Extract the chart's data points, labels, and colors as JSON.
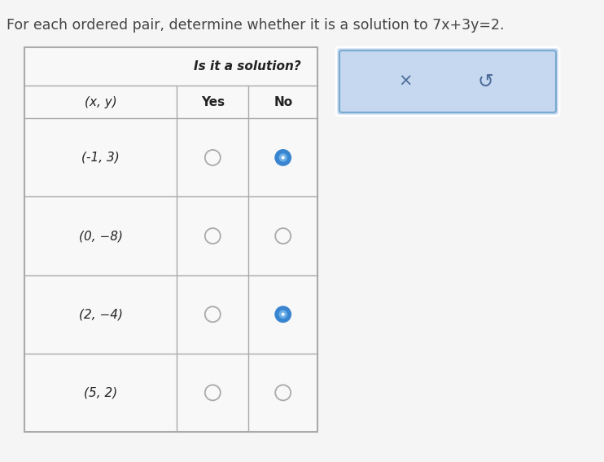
{
  "title": "For each ordered pair, determine whether it is a solution to 7x+3y=2.",
  "title_fontsize": 12.5,
  "background_color": "#f5f5f5",
  "table_bg": "#f8f8f8",
  "table_border_color": "#aaaaaa",
  "header_text": "Is it a solution?",
  "col1_header": "(x, y)",
  "col2_header": "Yes",
  "col3_header": "No",
  "rows": [
    {
      "pair": "(-1, 3)",
      "yes_filled": false,
      "no_filled": true
    },
    {
      "pair": "(0, −8)",
      "yes_filled": false,
      "no_filled": false
    },
    {
      "pair": "(2, −4)",
      "yes_filled": false,
      "no_filled": true
    },
    {
      "pair": "(5, 2)",
      "yes_filled": false,
      "no_filled": false
    }
  ],
  "radio_filled_color": "#3a85d0",
  "radio_filled_inner": "#6aafe8",
  "radio_empty_color": "#f8f8f8",
  "radio_border_color": "#aaaaaa",
  "legend_box_color": "#c5d8ef",
  "legend_border_color": "#7aaad0",
  "legend_border2_color": "#ffffff",
  "legend_x_text": "×",
  "legend_s_text": "↺",
  "fig_width": 7.42,
  "fig_height": 5.67,
  "fig_dpi": 100
}
